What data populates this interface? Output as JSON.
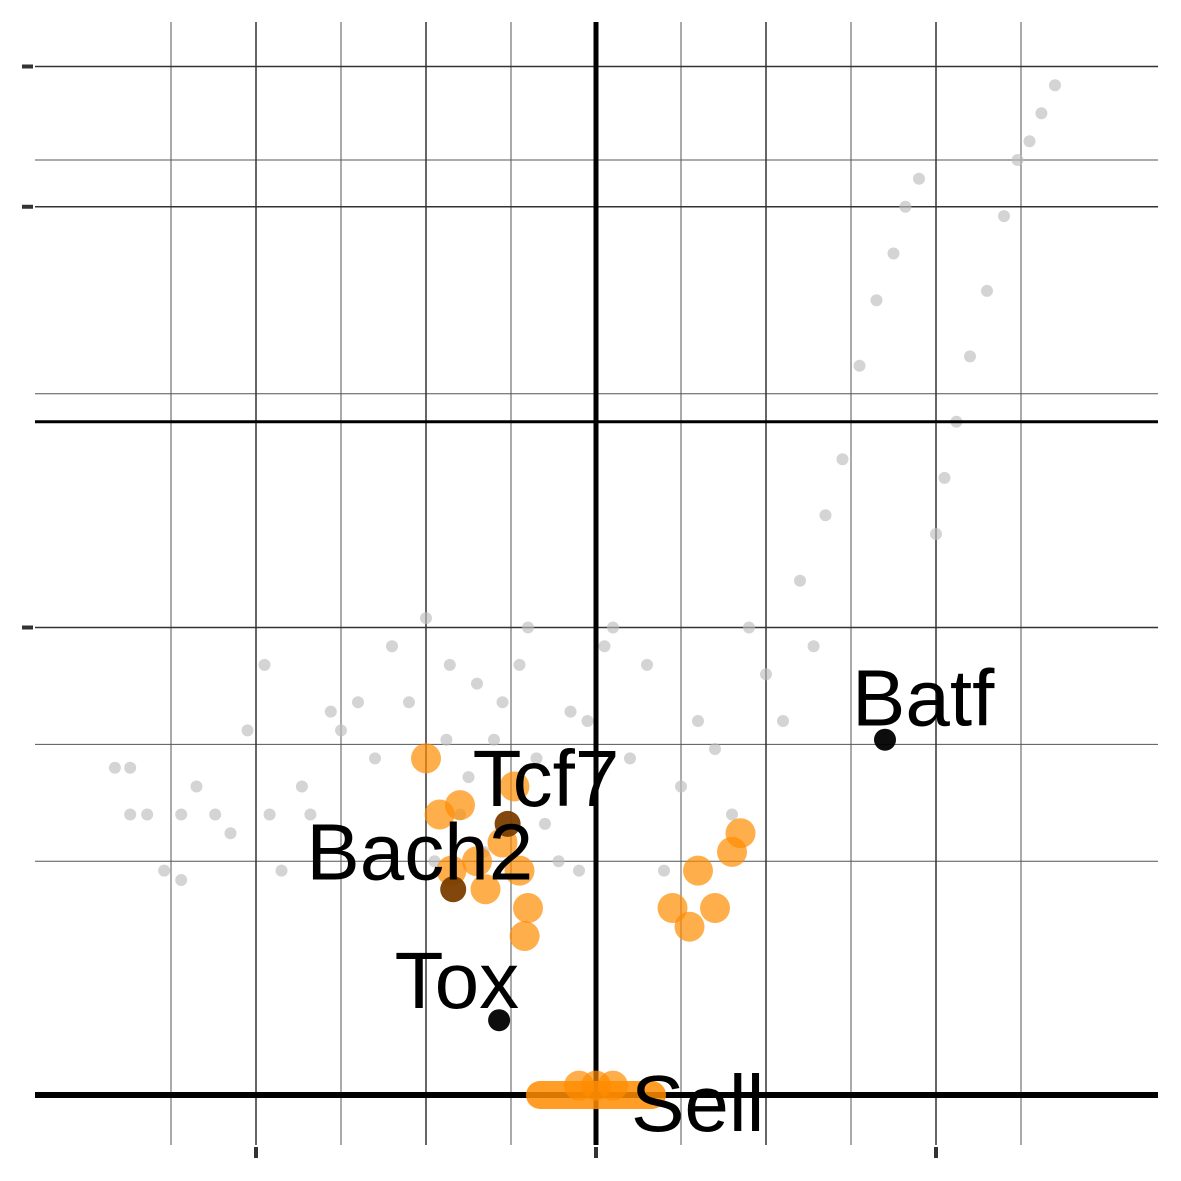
{
  "chart_data": {
    "type": "scatter",
    "title": "",
    "xlabel": "",
    "ylabel": "",
    "xlim": [
      -3.0,
      3.0
    ],
    "ylim": [
      0,
      1.15
    ],
    "x_ticks": [
      -2,
      0,
      2
    ],
    "y_ticks": [
      0.5,
      0.95,
      1.1
    ],
    "grid": true,
    "threshold_lines": {
      "x": 0,
      "y": [
        0,
        0.72
      ]
    },
    "colors": {
      "background_points": "#bdbdbd",
      "highlight_points": "#ff8c00",
      "labelled_points": "#000000"
    },
    "background_points": [
      [
        -2.83,
        0.35
      ],
      [
        -2.74,
        0.3
      ],
      [
        -2.74,
        0.35
      ],
      [
        -2.64,
        0.3
      ],
      [
        -2.54,
        0.24
      ],
      [
        -2.44,
        0.3
      ],
      [
        -2.44,
        0.23
      ],
      [
        -2.35,
        0.33
      ],
      [
        -2.24,
        0.3
      ],
      [
        -2.15,
        0.28
      ],
      [
        -2.05,
        0.39
      ],
      [
        -1.95,
        0.46
      ],
      [
        -1.92,
        0.3
      ],
      [
        -1.85,
        0.24
      ],
      [
        -1.73,
        0.33
      ],
      [
        -1.68,
        0.3
      ],
      [
        -1.56,
        0.41
      ],
      [
        -1.5,
        0.39
      ],
      [
        -1.4,
        0.42
      ],
      [
        -1.3,
        0.36
      ],
      [
        -1.2,
        0.48
      ],
      [
        -1.1,
        0.42
      ],
      [
        -1.0,
        0.51
      ],
      [
        -0.95,
        0.25
      ],
      [
        -0.88,
        0.38
      ],
      [
        -0.86,
        0.46
      ],
      [
        -0.8,
        0.3
      ],
      [
        -0.75,
        0.34
      ],
      [
        -0.7,
        0.44
      ],
      [
        -0.66,
        0.26
      ],
      [
        -0.6,
        0.38
      ],
      [
        -0.55,
        0.42
      ],
      [
        -0.45,
        0.46
      ],
      [
        -0.4,
        0.5
      ],
      [
        -0.35,
        0.36
      ],
      [
        -0.3,
        0.29
      ],
      [
        -0.22,
        0.25
      ],
      [
        -0.15,
        0.41
      ],
      [
        -0.1,
        0.24
      ],
      [
        -0.05,
        0.4
      ],
      [
        0.05,
        0.48
      ],
      [
        0.1,
        0.5
      ],
      [
        0.2,
        0.36
      ],
      [
        0.3,
        0.46
      ],
      [
        0.4,
        0.24
      ],
      [
        0.5,
        0.33
      ],
      [
        0.6,
        0.4
      ],
      [
        0.7,
        0.37
      ],
      [
        0.8,
        0.3
      ],
      [
        0.9,
        0.5
      ],
      [
        1.0,
        0.45
      ],
      [
        1.1,
        0.4
      ],
      [
        1.2,
        0.55
      ],
      [
        1.28,
        0.48
      ],
      [
        1.35,
        0.62
      ],
      [
        1.45,
        0.68
      ],
      [
        1.55,
        0.78
      ],
      [
        1.65,
        0.85
      ],
      [
        1.75,
        0.9
      ],
      [
        1.82,
        0.95
      ],
      [
        1.9,
        0.98
      ],
      [
        2.0,
        0.6
      ],
      [
        2.05,
        0.66
      ],
      [
        2.12,
        0.72
      ],
      [
        2.2,
        0.79
      ],
      [
        2.3,
        0.86
      ],
      [
        2.4,
        0.94
      ],
      [
        2.48,
        1.0
      ],
      [
        2.55,
        1.02
      ],
      [
        2.62,
        1.05
      ],
      [
        2.7,
        1.08
      ]
    ],
    "highlight_points": [
      [
        -1.0,
        0.36
      ],
      [
        -0.92,
        0.3
      ],
      [
        -0.85,
        0.24
      ],
      [
        -0.8,
        0.31
      ],
      [
        -0.7,
        0.25
      ],
      [
        -0.65,
        0.22
      ],
      [
        -0.55,
        0.27
      ],
      [
        -0.48,
        0.33
      ],
      [
        -0.45,
        0.24
      ],
      [
        -0.42,
        0.17
      ],
      [
        -0.4,
        0.2
      ],
      [
        -0.1,
        0.01
      ],
      [
        0.0,
        0.01
      ],
      [
        0.1,
        0.01
      ],
      [
        0.45,
        0.2
      ],
      [
        0.55,
        0.18
      ],
      [
        0.6,
        0.24
      ],
      [
        0.7,
        0.2
      ],
      [
        0.8,
        0.26
      ],
      [
        0.85,
        0.28
      ]
    ],
    "labelled_points": [
      {
        "label": "Tcf7",
        "x": -0.52,
        "y": 0.29
      },
      {
        "label": "Bach2",
        "x": -0.84,
        "y": 0.22
      },
      {
        "label": "Tox",
        "x": -0.57,
        "y": 0.08
      },
      {
        "label": "Sell",
        "x": 0.0,
        "y": 0.0
      },
      {
        "label": "Batf",
        "x": 1.7,
        "y": 0.38
      }
    ]
  }
}
